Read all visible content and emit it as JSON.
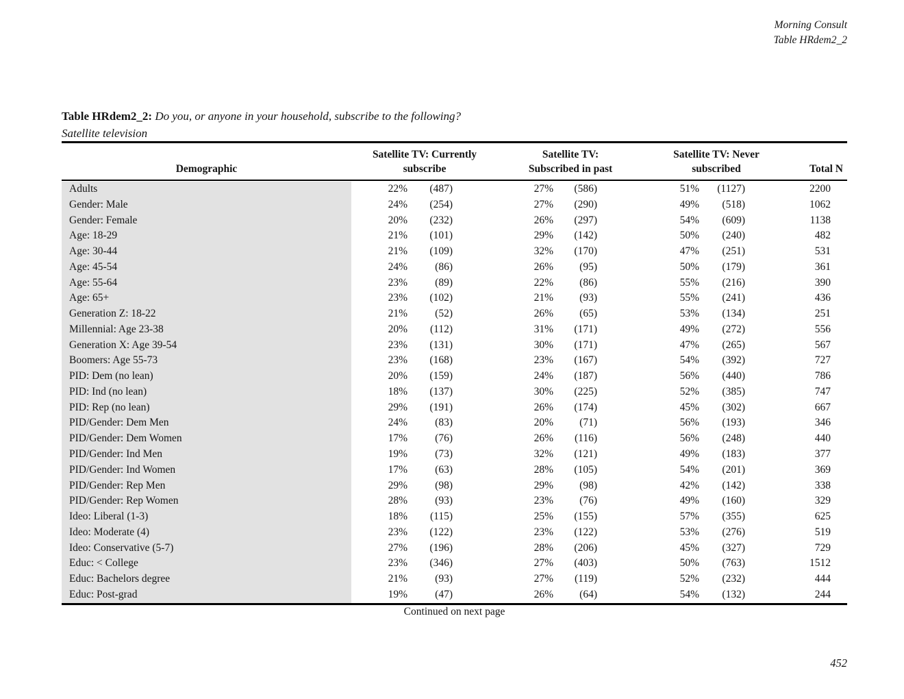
{
  "colors": {
    "row_shade": "#e2e2e2",
    "rule": "#000000",
    "text": "#151515"
  },
  "page": {
    "header_line1": "Morning Consult",
    "header_line2": "Table HRdem2_2",
    "title_label": "Table HRdem2_2:",
    "title_question": "Do you, or anyone in your household, subscribe to the following?",
    "title_subtitle": "Satellite television",
    "footer_note": "Continued on next page",
    "page_number": "452"
  },
  "table": {
    "columns": {
      "demographic": "Demographic",
      "col1_line1": "Satellite TV: Currently",
      "col1_line2": "subscribe",
      "col2_line1": "Satellite TV:",
      "col2_line2": "Subscribed in past",
      "col3_line1": "Satellite TV: Never",
      "col3_line2": "subscribed",
      "total": "Total N"
    },
    "rows": [
      [
        "Adults",
        "22%",
        "(487)",
        "27%",
        "(586)",
        "51%",
        "(1127)",
        "2200"
      ],
      [
        "Gender: Male",
        "24%",
        "(254)",
        "27%",
        "(290)",
        "49%",
        "(518)",
        "1062"
      ],
      [
        "Gender: Female",
        "20%",
        "(232)",
        "26%",
        "(297)",
        "54%",
        "(609)",
        "1138"
      ],
      [
        "Age: 18-29",
        "21%",
        "(101)",
        "29%",
        "(142)",
        "50%",
        "(240)",
        "482"
      ],
      [
        "Age: 30-44",
        "21%",
        "(109)",
        "32%",
        "(170)",
        "47%",
        "(251)",
        "531"
      ],
      [
        "Age: 45-54",
        "24%",
        "(86)",
        "26%",
        "(95)",
        "50%",
        "(179)",
        "361"
      ],
      [
        "Age: 55-64",
        "23%",
        "(89)",
        "22%",
        "(86)",
        "55%",
        "(216)",
        "390"
      ],
      [
        "Age: 65+",
        "23%",
        "(102)",
        "21%",
        "(93)",
        "55%",
        "(241)",
        "436"
      ],
      [
        "Generation Z: 18-22",
        "21%",
        "(52)",
        "26%",
        "(65)",
        "53%",
        "(134)",
        "251"
      ],
      [
        "Millennial: Age 23-38",
        "20%",
        "(112)",
        "31%",
        "(171)",
        "49%",
        "(272)",
        "556"
      ],
      [
        "Generation X: Age 39-54",
        "23%",
        "(131)",
        "30%",
        "(171)",
        "47%",
        "(265)",
        "567"
      ],
      [
        "Boomers: Age 55-73",
        "23%",
        "(168)",
        "23%",
        "(167)",
        "54%",
        "(392)",
        "727"
      ],
      [
        "PID: Dem (no lean)",
        "20%",
        "(159)",
        "24%",
        "(187)",
        "56%",
        "(440)",
        "786"
      ],
      [
        "PID: Ind (no lean)",
        "18%",
        "(137)",
        "30%",
        "(225)",
        "52%",
        "(385)",
        "747"
      ],
      [
        "PID: Rep (no lean)",
        "29%",
        "(191)",
        "26%",
        "(174)",
        "45%",
        "(302)",
        "667"
      ],
      [
        "PID/Gender: Dem Men",
        "24%",
        "(83)",
        "20%",
        "(71)",
        "56%",
        "(193)",
        "346"
      ],
      [
        "PID/Gender: Dem Women",
        "17%",
        "(76)",
        "26%",
        "(116)",
        "56%",
        "(248)",
        "440"
      ],
      [
        "PID/Gender: Ind Men",
        "19%",
        "(73)",
        "32%",
        "(121)",
        "49%",
        "(183)",
        "377"
      ],
      [
        "PID/Gender: Ind Women",
        "17%",
        "(63)",
        "28%",
        "(105)",
        "54%",
        "(201)",
        "369"
      ],
      [
        "PID/Gender: Rep Men",
        "29%",
        "(98)",
        "29%",
        "(98)",
        "42%",
        "(142)",
        "338"
      ],
      [
        "PID/Gender: Rep Women",
        "28%",
        "(93)",
        "23%",
        "(76)",
        "49%",
        "(160)",
        "329"
      ],
      [
        "Ideo: Liberal (1-3)",
        "18%",
        "(115)",
        "25%",
        "(155)",
        "57%",
        "(355)",
        "625"
      ],
      [
        "Ideo: Moderate (4)",
        "23%",
        "(122)",
        "23%",
        "(122)",
        "53%",
        "(276)",
        "519"
      ],
      [
        "Ideo: Conservative (5-7)",
        "27%",
        "(196)",
        "28%",
        "(206)",
        "45%",
        "(327)",
        "729"
      ],
      [
        "Educ: < College",
        "23%",
        "(346)",
        "27%",
        "(403)",
        "50%",
        "(763)",
        "1512"
      ],
      [
        "Educ: Bachelors degree",
        "21%",
        "(93)",
        "27%",
        "(119)",
        "52%",
        "(232)",
        "444"
      ],
      [
        "Educ: Post-grad",
        "19%",
        "(47)",
        "26%",
        "(64)",
        "54%",
        "(132)",
        "244"
      ]
    ]
  }
}
